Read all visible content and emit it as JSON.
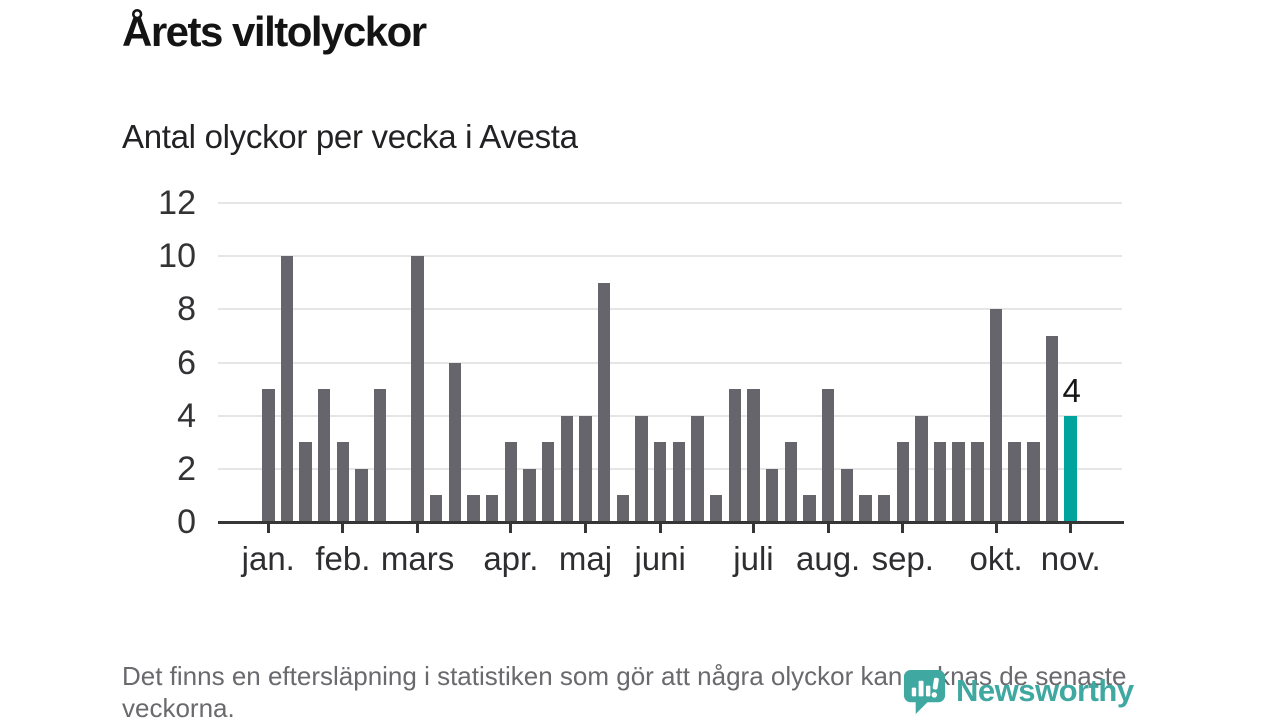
{
  "header": {
    "title": "Årets viltolyckor",
    "subtitle": "Antal olyckor per vecka i Avesta"
  },
  "footer": {
    "note": "Det finns en eftersläpning i statistiken som gör att några olyckor kan saknas de senaste veckorna.",
    "brand": "Newsworthy"
  },
  "colors": {
    "bar": "#65656b",
    "highlight": "#00a49c",
    "brand_teal": "#3fa8a0",
    "gridline": "#e6e6e6",
    "axis": "#363636"
  },
  "chart_data": {
    "type": "bar",
    "title": "Årets viltolyckor",
    "subtitle": "Antal olyckor per vecka i Avesta",
    "x_unit": "vecka",
    "ylim": [
      0,
      12
    ],
    "y_ticks": [
      0,
      2,
      4,
      6,
      8,
      10,
      12
    ],
    "grid": true,
    "legend_position": "none",
    "month_labels": [
      "jan.",
      "feb.",
      "mars",
      "apr.",
      "maj",
      "juni",
      "juli",
      "aug.",
      "sep.",
      "okt.",
      "nov."
    ],
    "month_tick_bar_index": [
      0,
      4,
      8,
      13,
      17,
      21,
      26,
      30,
      34,
      39,
      43
    ],
    "values": [
      5,
      10,
      3,
      5,
      3,
      2,
      5,
      0,
      10,
      1,
      6,
      1,
      1,
      3,
      2,
      3,
      4,
      4,
      9,
      1,
      4,
      3,
      3,
      4,
      1,
      5,
      5,
      2,
      3,
      1,
      5,
      2,
      1,
      1,
      3,
      4,
      3,
      3,
      3,
      8,
      3,
      3,
      7,
      4
    ],
    "highlight_index": 43,
    "highlight_value_label": "4"
  }
}
